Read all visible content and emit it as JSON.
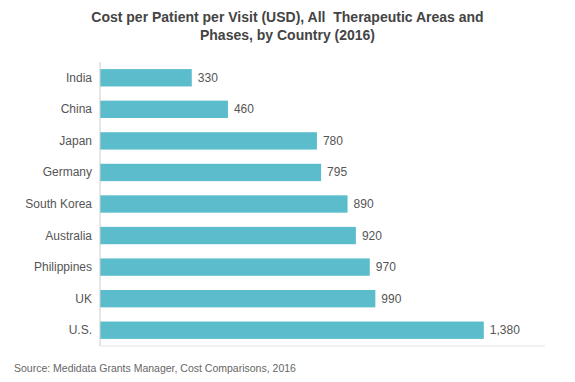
{
  "chart_data": {
    "type": "bar",
    "orientation": "horizontal",
    "title": "Cost per Patient per Visit (USD), All  Therapeutic Areas and\nPhases, by Country (2016)",
    "categories": [
      "India",
      "China",
      "Japan",
      "Germany",
      "South Korea",
      "Australia",
      "Philippines",
      "UK",
      "U.S."
    ],
    "values": [
      330,
      460,
      780,
      795,
      890,
      920,
      970,
      990,
      1380
    ],
    "value_labels": [
      "330",
      "460",
      "780",
      "795",
      "890",
      "920",
      "970",
      "990",
      "1,380"
    ],
    "color": "#5bbccc",
    "xlim": [
      0,
      1600
    ],
    "data_labels": true,
    "tick_labels": "y",
    "annotations": [
      "Source: Medidata Grants Manager, Cost Comparisons, 2016"
    ]
  }
}
